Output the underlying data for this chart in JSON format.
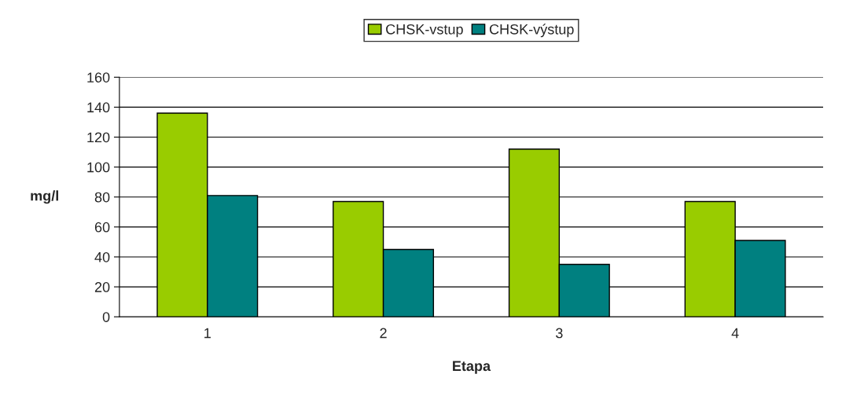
{
  "chart_data": {
    "type": "bar",
    "xlabel": "Etapa",
    "ylabel": "mg/l",
    "categories": [
      "1",
      "2",
      "3",
      "4"
    ],
    "series": [
      {
        "name": "CHSK-vstup",
        "color": "#99cc00",
        "values": [
          136,
          77,
          112,
          77
        ]
      },
      {
        "name": "CHSK-výstup",
        "color": "#008080",
        "values": [
          81,
          45,
          35,
          51
        ]
      }
    ],
    "ylim": [
      0,
      160
    ],
    "yticks": [
      0,
      20,
      40,
      60,
      80,
      100,
      120,
      140,
      160
    ],
    "grid": "y",
    "legend": "top"
  }
}
